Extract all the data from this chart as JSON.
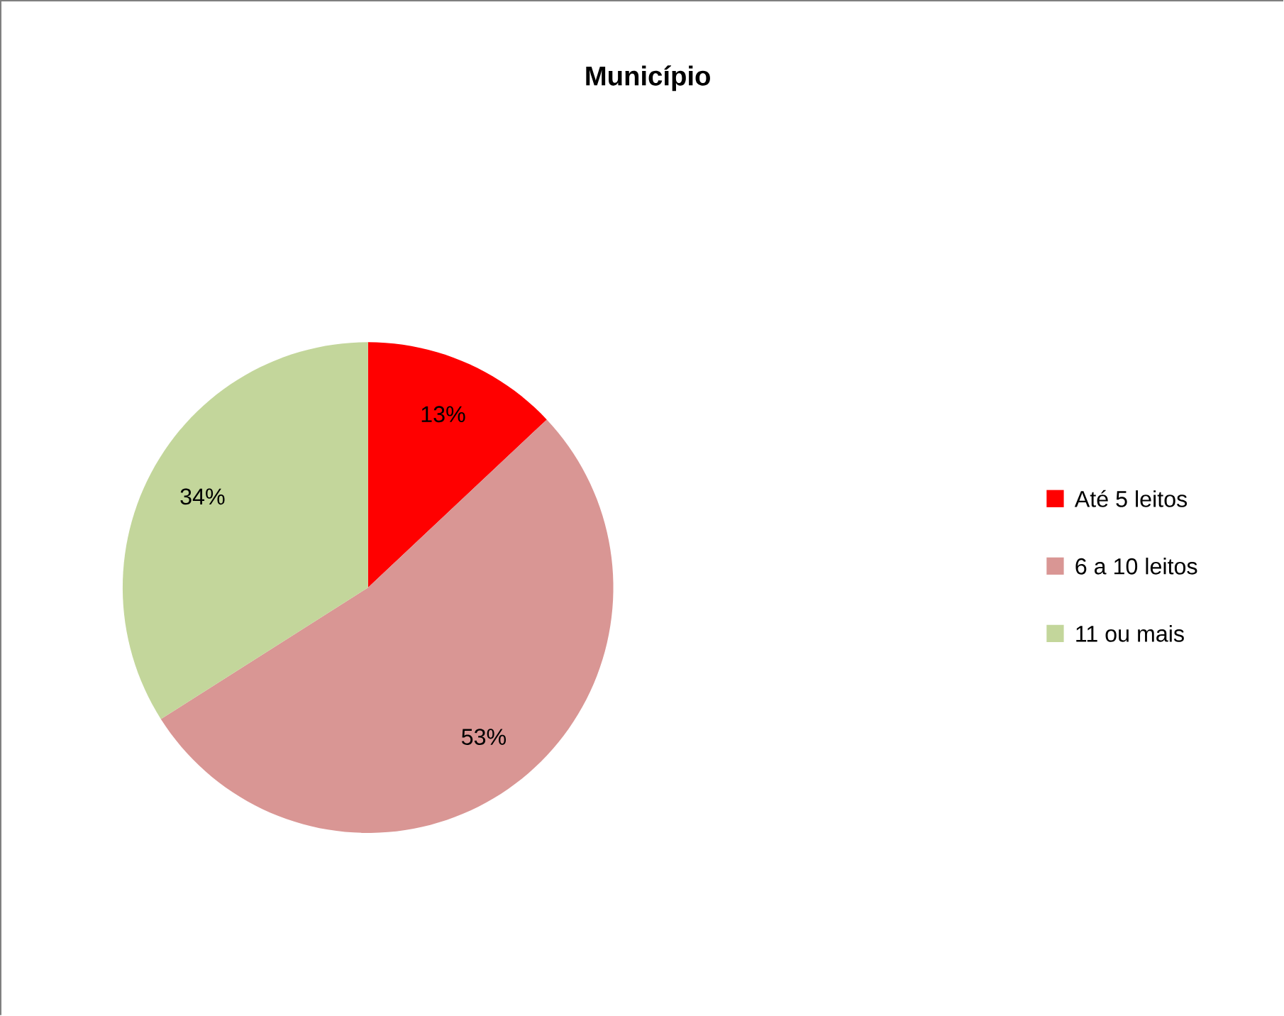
{
  "chart_data": {
    "type": "pie",
    "title": "Município",
    "categories": [
      "Até 5 leitos",
      "6 a 10 leitos",
      "11 ou mais"
    ],
    "values": [
      13,
      53,
      34
    ],
    "colors": [
      "#ff0000",
      "#d99694",
      "#c3d69b"
    ],
    "value_labels": [
      "13%",
      "53%",
      "34%"
    ],
    "legend": "right"
  }
}
